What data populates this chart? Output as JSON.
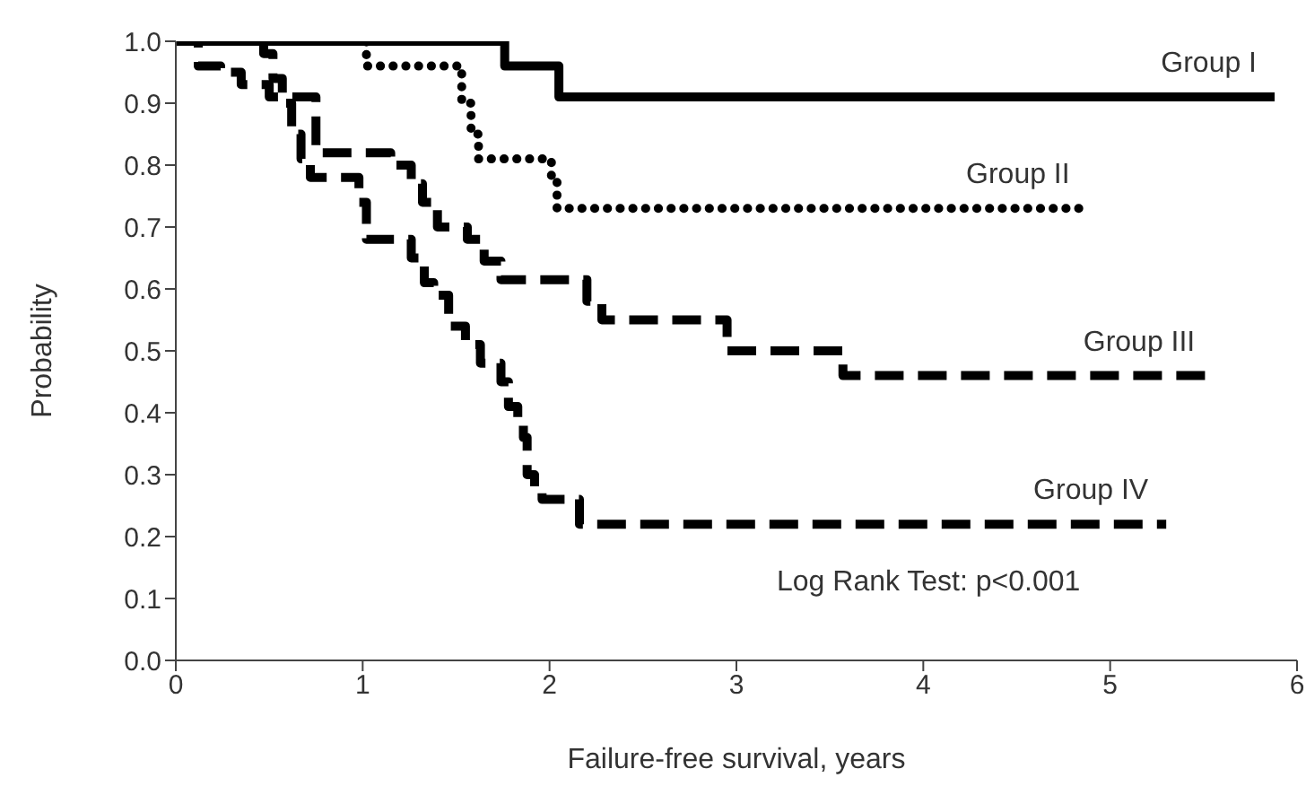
{
  "chart_data": {
    "type": "step",
    "xlabel": "Failure-free survival, years",
    "ylabel": "Probability",
    "xlim": [
      0,
      6
    ],
    "xticks": [
      0,
      1,
      2,
      3,
      4,
      5,
      6
    ],
    "ylim": [
      0,
      1
    ],
    "yticks": [
      {
        "value": 0,
        "label": "0.0"
      },
      0.1,
      0.2,
      0.3,
      0.4,
      0.5,
      0.6,
      0.7,
      0.8,
      0.9,
      {
        "value": 1,
        "label": "1.0"
      }
    ],
    "marker": "none",
    "annotations": [
      "Log Rank Test: p<0.001"
    ],
    "series": [
      {
        "name": "Group I",
        "color": "#000000",
        "line_style": "solid",
        "x": [
          0,
          1.76,
          2.05,
          5.88
        ],
        "values": [
          1,
          0.96,
          0.91,
          0.91
        ]
      },
      {
        "name": "Group II",
        "color": "#000000",
        "line_style": "dotted",
        "x": [
          0,
          1.02,
          1.53,
          1.58,
          1.62,
          2.01,
          2.04,
          4.88
        ],
        "values": [
          1,
          0.96,
          0.9,
          0.85,
          0.81,
          0.78,
          0.73,
          0.73
        ]
      },
      {
        "name": "Group III",
        "color": "#000000",
        "line_style": "dashed",
        "x": [
          0,
          0.12,
          0.24,
          0.35,
          0.5,
          0.75,
          1.15,
          1.26,
          1.32,
          1.4,
          1.56,
          1.65,
          1.74,
          2.2,
          2.28,
          2.95,
          3.57,
          5.55
        ],
        "values": [
          1,
          0.96,
          0.95,
          0.93,
          0.91,
          0.82,
          0.8,
          0.77,
          0.74,
          0.7,
          0.68,
          0.645,
          0.615,
          0.58,
          0.55,
          0.5,
          0.46,
          0.46
        ]
      },
      {
        "name": "Group IV",
        "color": "#000000",
        "line_style": "dashed",
        "x": [
          0,
          0.47,
          0.52,
          0.57,
          0.62,
          0.67,
          0.72,
          0.98,
          1.02,
          1.26,
          1.33,
          1.38,
          1.46,
          1.55,
          1.63,
          1.74,
          1.78,
          1.83,
          1.86,
          1.88,
          1.92,
          1.96,
          2.16,
          5.3
        ],
        "values": [
          1,
          0.98,
          0.94,
          0.9,
          0.85,
          0.81,
          0.78,
          0.74,
          0.68,
          0.65,
          0.61,
          0.59,
          0.54,
          0.51,
          0.48,
          0.45,
          0.41,
          0.38,
          0.36,
          0.3,
          0.28,
          0.26,
          0.22,
          0.22
        ]
      }
    ]
  }
}
